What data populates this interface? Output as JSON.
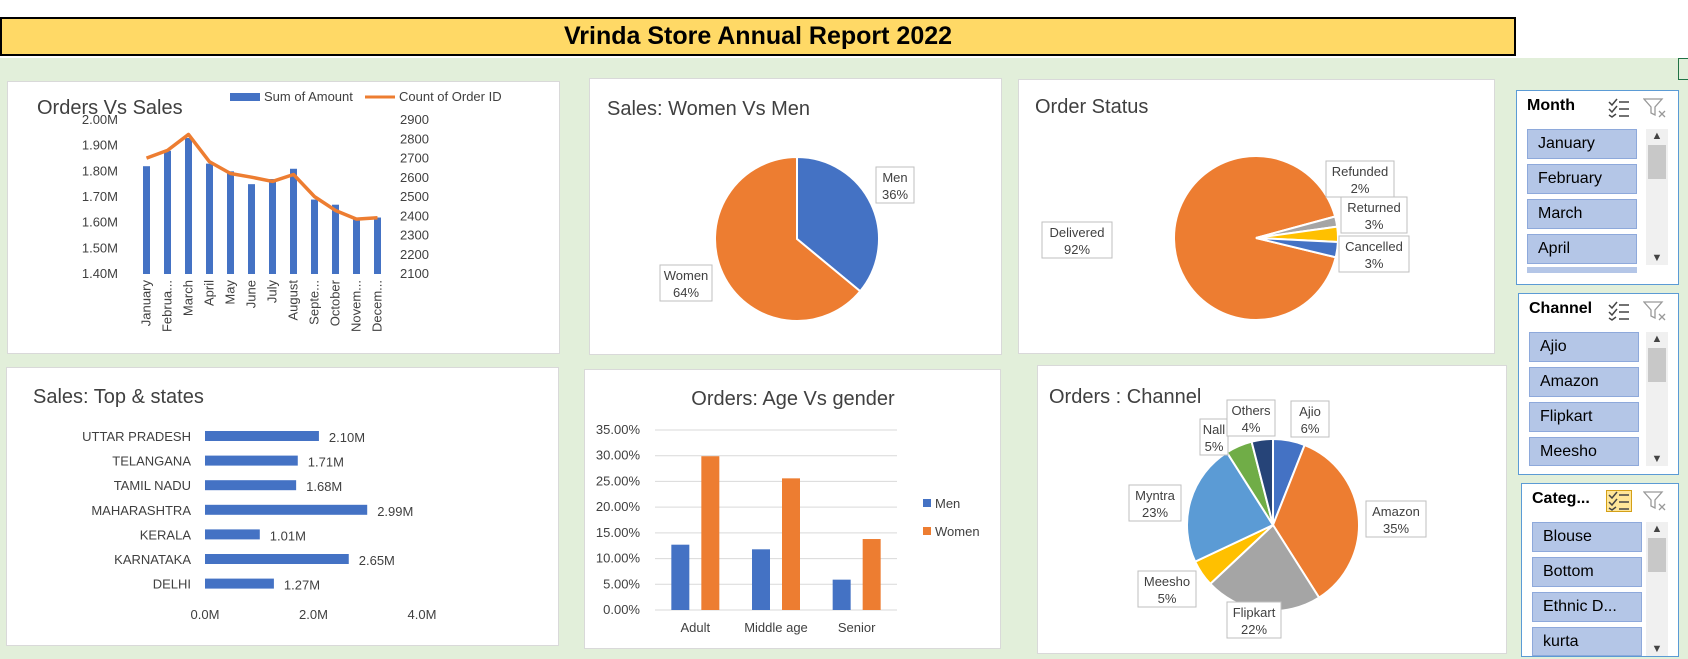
{
  "report_title": "Vrinda Store Annual Report 2022",
  "chart_data": [
    {
      "id": "orders_vs_sales",
      "type": "bar+line",
      "title": "Orders Vs Sales",
      "categories": [
        "January",
        "Februa...",
        "March",
        "April",
        "May",
        "June",
        "July",
        "August",
        "Septe...",
        "October",
        "Novem...",
        "Decem..."
      ],
      "series": [
        {
          "name": "Sum of Amount",
          "type": "bar",
          "axis": "left",
          "color": "#4472c4",
          "values": [
            1.82,
            1.88,
            1.93,
            1.83,
            1.8,
            1.75,
            1.77,
            1.81,
            1.69,
            1.67,
            1.62,
            1.62
          ]
        },
        {
          "name": "Count of Order ID",
          "type": "line",
          "axis": "right",
          "color": "#ed7d31",
          "values": [
            2702,
            2742,
            2825,
            2683,
            2622,
            2603,
            2581,
            2617,
            2502,
            2430,
            2385,
            2392
          ]
        }
      ],
      "y_left": {
        "min": 1.4,
        "max": 2.0,
        "ticks": [
          "1.40M",
          "1.50M",
          "1.60M",
          "1.70M",
          "1.80M",
          "1.90M",
          "2.00M"
        ]
      },
      "y_right": {
        "min": 2100,
        "max": 2900,
        "ticks": [
          "2100",
          "2200",
          "2300",
          "2400",
          "2500",
          "2600",
          "2700",
          "2800",
          "2900"
        ]
      },
      "legend": "top-right",
      "grid": false
    },
    {
      "id": "sales_women_vs_men",
      "type": "pie",
      "title": "Sales: Women Vs Men",
      "slices": [
        {
          "label": "Men",
          "pct": "36%",
          "value": 36,
          "color": "#4472c4"
        },
        {
          "label": "Women",
          "pct": "64%",
          "value": 64,
          "color": "#ed7d31"
        }
      ]
    },
    {
      "id": "order_status",
      "type": "pie",
      "title": "Order Status",
      "slices": [
        {
          "label": "Delivered",
          "pct": "92%",
          "value": 92,
          "color": "#ed7d31"
        },
        {
          "label": "Refunded",
          "pct": "2%",
          "value": 2,
          "color": "#a5a5a5"
        },
        {
          "label": "Returned",
          "pct": "3%",
          "value": 3,
          "color": "#ffc000"
        },
        {
          "label": "Cancelled",
          "pct": "3%",
          "value": 3,
          "color": "#4472c4"
        }
      ]
    },
    {
      "id": "sales_top_states",
      "type": "bar",
      "orientation": "horizontal",
      "title": "Sales: Top & states",
      "categories": [
        "UTTAR PRADESH",
        "TELANGANA",
        "TAMIL NADU",
        "MAHARASHTRA",
        "KERALA",
        "KARNATAKA",
        "DELHI"
      ],
      "values": [
        2.1,
        1.71,
        1.68,
        2.99,
        1.01,
        2.65,
        1.27
      ],
      "labels": [
        "2.10M",
        "1.71M",
        "1.68M",
        "2.99M",
        "1.01M",
        "2.65M",
        "1.27M"
      ],
      "color": "#4472c4",
      "x_axis": {
        "min": 0,
        "max": 4,
        "ticks": [
          "0.0M",
          "2.0M",
          "4.0M"
        ]
      }
    },
    {
      "id": "orders_age_vs_gender",
      "type": "bar",
      "title": "Orders: Age Vs gender",
      "categories": [
        "Adult",
        "Middle age",
        "Senior"
      ],
      "series": [
        {
          "name": "Men",
          "color": "#4472c4",
          "values": [
            12.7,
            11.8,
            5.9
          ]
        },
        {
          "name": "Women",
          "color": "#ed7d31",
          "values": [
            29.9,
            25.6,
            13.8
          ]
        }
      ],
      "y_axis": {
        "min": 0,
        "max": 35,
        "ticks": [
          "0.00%",
          "5.00%",
          "10.00%",
          "15.00%",
          "20.00%",
          "25.00%",
          "30.00%",
          "35.00%"
        ]
      },
      "legend": "right",
      "grid": true
    },
    {
      "id": "orders_channel",
      "type": "pie",
      "title": "Orders : Channel",
      "slices": [
        {
          "label": "Ajio",
          "pct": "6%",
          "value": 6,
          "color": "#4472c4"
        },
        {
          "label": "Amazon",
          "pct": "35%",
          "value": 35,
          "color": "#ed7d31"
        },
        {
          "label": "Flipkart",
          "pct": "22%",
          "value": 22,
          "color": "#a5a5a5"
        },
        {
          "label": "Meesho",
          "pct": "5%",
          "value": 5,
          "color": "#ffc000"
        },
        {
          "label": "Myntra",
          "pct": "23%",
          "value": 23,
          "color": "#5b9bd5"
        },
        {
          "label": "Nall",
          "pct": "5%",
          "value": 5,
          "color": "#70ad47"
        },
        {
          "label": "Others",
          "pct": "4%",
          "value": 4,
          "color": "#264478"
        }
      ]
    }
  ],
  "slicers": [
    {
      "name": "month",
      "title": "Month",
      "items": [
        "January",
        "February",
        "March",
        "April"
      ]
    },
    {
      "name": "channel",
      "title": "Channel",
      "items": [
        "Ajio",
        "Amazon",
        "Flipkart",
        "Meesho"
      ]
    },
    {
      "name": "category",
      "title": "Categ...",
      "items": [
        "Blouse",
        "Bottom",
        "Ethnic D...",
        "kurta"
      ]
    }
  ]
}
